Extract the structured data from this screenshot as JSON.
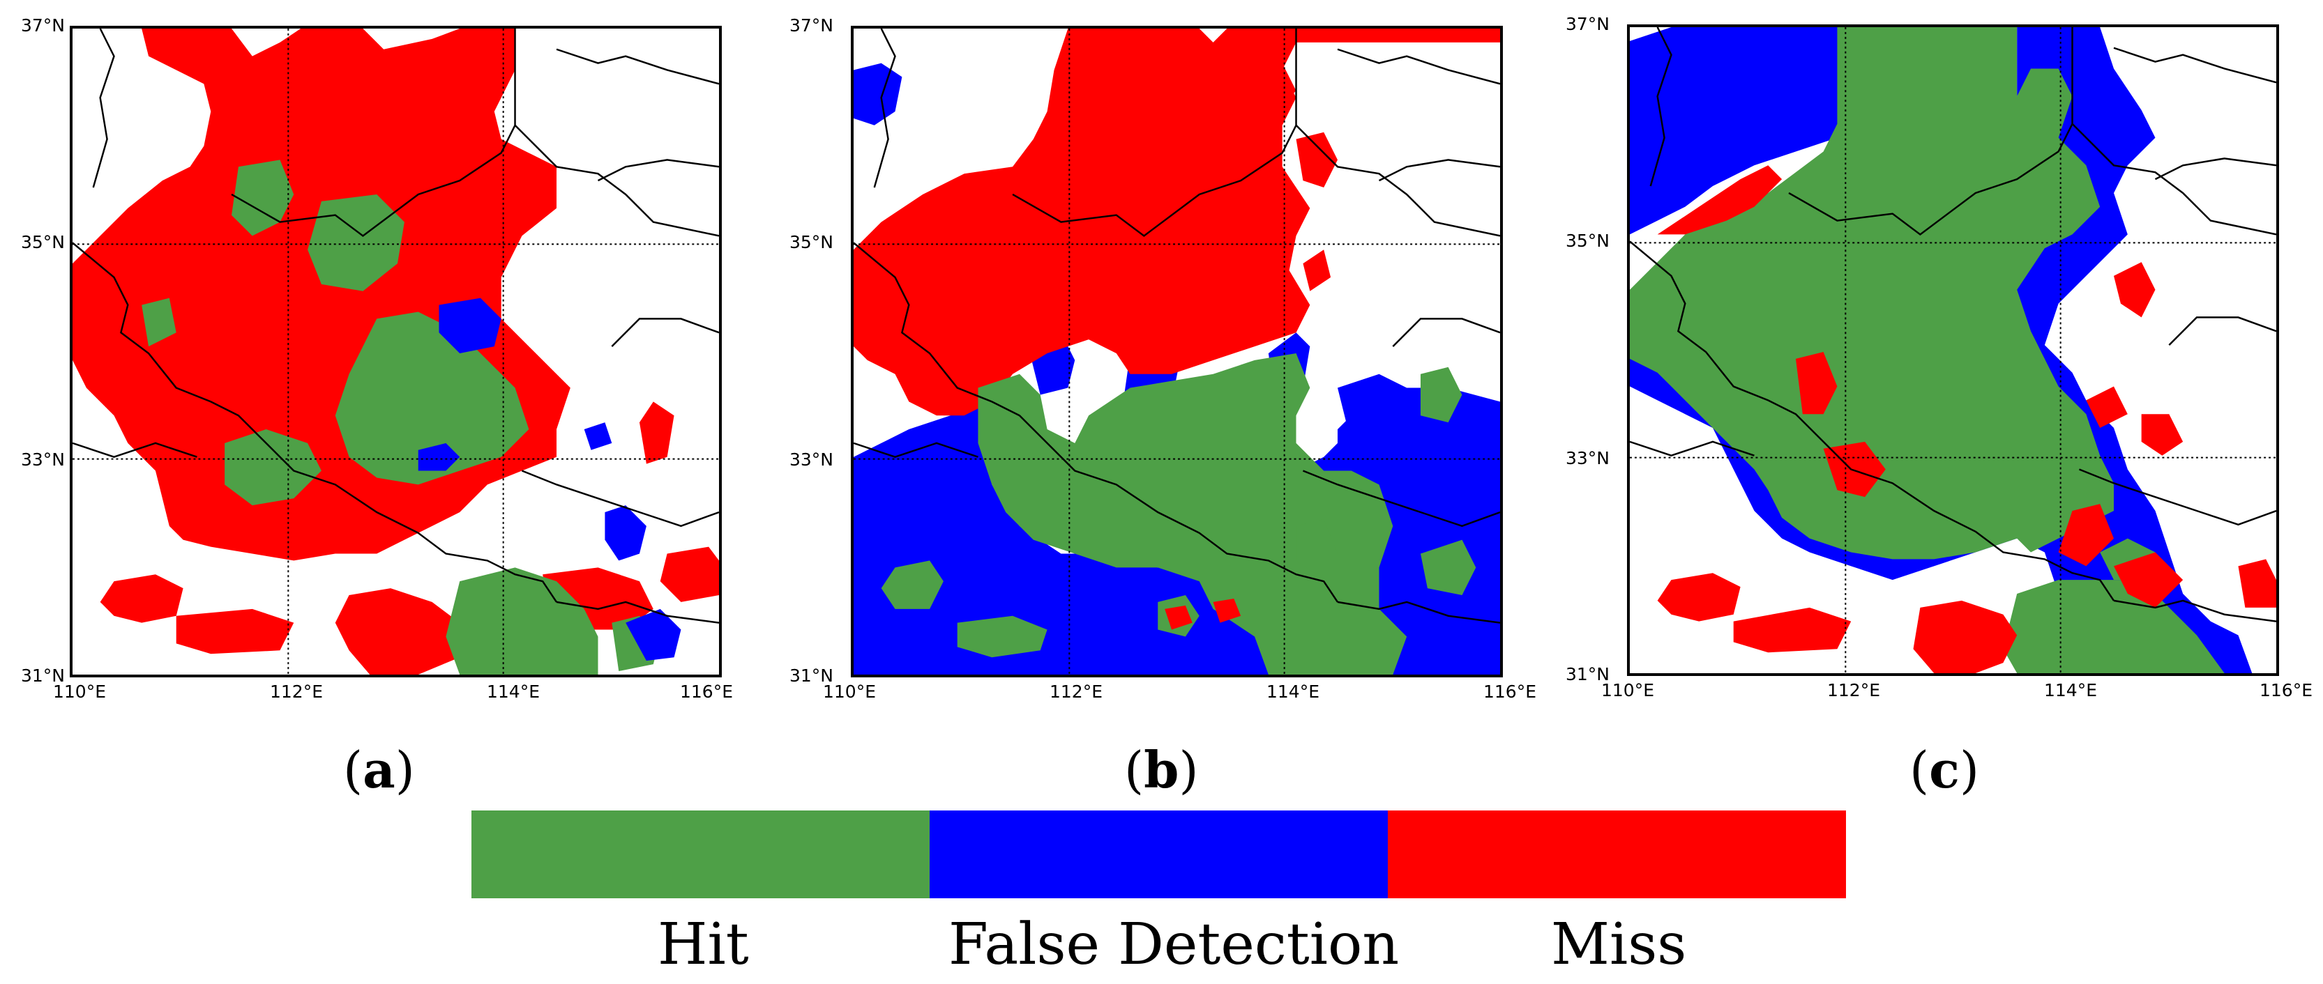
{
  "colors": {
    "hit": "#4ea047",
    "false_detection": "#0000ff",
    "miss": "#ff0000",
    "border": "#000000",
    "grid": "#000000"
  },
  "axes": {
    "lat_labels": [
      "37°N",
      "35°N",
      "33°N",
      "31°N"
    ],
    "lon_labels": [
      "110°E",
      "112°E",
      "114°E",
      "116°E"
    ]
  },
  "panels": [
    {
      "id": "a",
      "paren_open": "(",
      "letter": "a",
      "paren_close": ")"
    },
    {
      "id": "b",
      "paren_open": "(",
      "letter": "b",
      "paren_close": ")"
    },
    {
      "id": "c",
      "paren_open": "(",
      "letter": "c",
      "paren_close": ")"
    }
  ],
  "legend": {
    "items": [
      {
        "label": "Hit",
        "color": "#4ea047"
      },
      {
        "label": "False Detection",
        "color": "#0000ff"
      },
      {
        "label": "Miss",
        "color": "#ff0000"
      }
    ]
  }
}
